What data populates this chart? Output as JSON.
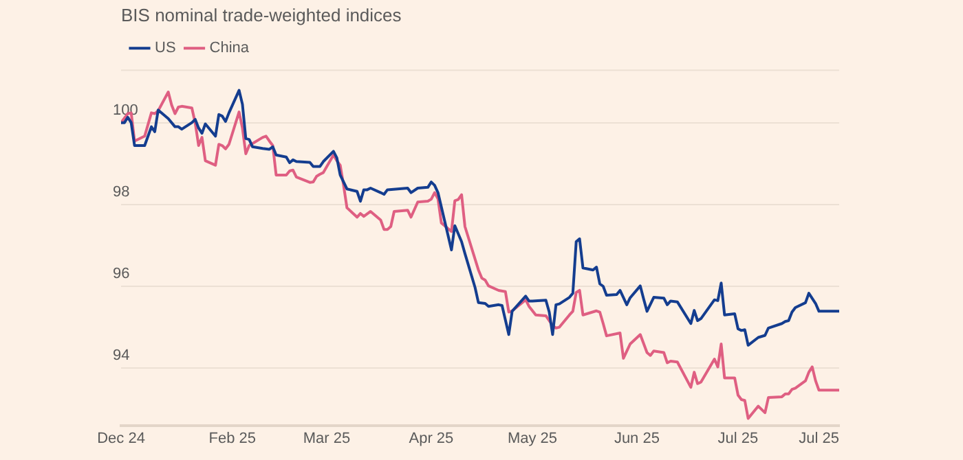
{
  "chart_data": {
    "type": "line",
    "title": "BIS nominal trade-weighted indices",
    "legend": "top left",
    "grid": "y",
    "marker": "none",
    "line_style": "solid",
    "xlim": [
      "2024-12-30",
      "2025-07-31"
    ],
    "xticks": [
      {
        "value": "2024-12-30",
        "label": "Dec 24"
      },
      {
        "value": "2025-02-01",
        "label": "Feb 25"
      },
      {
        "value": "2025-03-01",
        "label": "Mar 25"
      },
      {
        "value": "2025-04-01",
        "label": "Apr 25"
      },
      {
        "value": "2025-05-01",
        "label": "May 25"
      },
      {
        "value": "2025-06-01",
        "label": "Jun 25"
      },
      {
        "value": "2025-07-01",
        "label": "Jul 25"
      },
      {
        "value": "2025-07-25",
        "label": "Jul 25"
      }
    ],
    "ylim": [
      92.6,
      101.3
    ],
    "yticks": [
      94,
      96,
      98,
      100
    ],
    "series": [
      {
        "name": "US",
        "color": "#143d8f",
        "x": [
          "2024-12-30",
          "2024-12-31",
          "2025-01-01",
          "2025-01-02",
          "2025-01-03",
          "2025-01-06",
          "2025-01-08",
          "2025-01-09",
          "2025-01-10",
          "2025-01-13",
          "2025-01-15",
          "2025-01-16",
          "2025-01-17",
          "2025-01-20",
          "2025-01-21",
          "2025-01-22",
          "2025-01-23",
          "2025-01-24",
          "2025-01-27",
          "2025-01-28",
          "2025-01-29",
          "2025-01-30",
          "2025-01-31",
          "2025-02-03",
          "2025-02-04",
          "2025-02-05",
          "2025-02-06",
          "2025-02-07",
          "2025-02-10",
          "2025-02-12",
          "2025-02-13",
          "2025-02-14",
          "2025-02-17",
          "2025-02-18",
          "2025-02-19",
          "2025-02-20",
          "2025-02-24",
          "2025-02-25",
          "2025-02-27",
          "2025-02-28",
          "2025-03-03",
          "2025-03-04",
          "2025-03-05",
          "2025-03-07",
          "2025-03-10",
          "2025-03-11",
          "2025-03-12",
          "2025-03-13",
          "2025-03-14",
          "2025-03-17",
          "2025-03-18",
          "2025-03-19",
          "2025-03-25",
          "2025-03-26",
          "2025-03-28",
          "2025-03-31",
          "2025-04-01",
          "2025-04-02",
          "2025-04-03",
          "2025-04-07",
          "2025-04-08",
          "2025-04-10",
          "2025-04-11",
          "2025-04-14",
          "2025-04-15",
          "2025-04-17",
          "2025-04-18",
          "2025-04-21",
          "2025-04-22",
          "2025-04-24",
          "2025-04-25",
          "2025-04-29",
          "2025-04-30",
          "2025-05-01",
          "2025-05-05",
          "2025-05-06",
          "2025-05-07",
          "2025-05-08",
          "2025-05-09",
          "2025-05-12",
          "2025-05-13",
          "2025-05-14",
          "2025-05-15",
          "2025-05-16",
          "2025-05-19",
          "2025-05-20",
          "2025-05-21",
          "2025-05-22",
          "2025-05-23",
          "2025-05-26",
          "2025-05-27",
          "2025-05-29",
          "2025-05-30",
          "2025-06-02",
          "2025-06-03",
          "2025-06-04",
          "2025-06-06",
          "2025-06-09",
          "2025-06-10",
          "2025-06-11",
          "2025-06-13",
          "2025-06-17",
          "2025-06-18",
          "2025-06-19",
          "2025-06-20",
          "2025-06-24",
          "2025-06-25",
          "2025-06-26",
          "2025-06-27",
          "2025-06-30",
          "2025-07-01",
          "2025-07-02",
          "2025-07-03",
          "2025-07-04",
          "2025-07-07",
          "2025-07-09",
          "2025-07-10",
          "2025-07-14",
          "2025-07-15",
          "2025-07-16",
          "2025-07-17",
          "2025-07-18",
          "2025-07-21",
          "2025-07-22",
          "2025-07-24",
          "2025-07-25",
          "2025-07-31"
        ],
        "values": [
          100,
          100,
          100.13,
          100,
          99.44,
          99.44,
          99.9,
          99.78,
          100.31,
          100.1,
          99.9,
          99.9,
          99.84,
          100,
          100.08,
          99.87,
          99.74,
          99.97,
          99.67,
          100.2,
          100.16,
          100.03,
          100.24,
          100.79,
          100.45,
          99.61,
          99.59,
          99.41,
          99.37,
          99.35,
          99.41,
          99.21,
          99.16,
          99.02,
          99.09,
          99.05,
          99.03,
          98.93,
          98.93,
          99.05,
          99.3,
          99.14,
          98.72,
          98.38,
          98.32,
          98.08,
          98.36,
          98.36,
          98.4,
          98.29,
          98.25,
          98.36,
          98.4,
          98.29,
          98.4,
          98.42,
          98.55,
          98.47,
          98.29,
          96.89,
          97.48,
          97.09,
          96.8,
          95.97,
          95.6,
          95.58,
          95.51,
          95.55,
          95.53,
          94.82,
          95.39,
          95.76,
          95.64,
          95.64,
          95.66,
          95.37,
          94.82,
          95.55,
          95.57,
          95.73,
          95.83,
          97.09,
          97.16,
          96.45,
          96.4,
          96.47,
          96.06,
          96,
          95.78,
          95.8,
          95.9,
          95.55,
          95.72,
          96.01,
          95.69,
          95.39,
          95.73,
          95.71,
          95.55,
          95.64,
          95.62,
          95.09,
          95.41,
          95.16,
          95.21,
          95.67,
          95.65,
          96.08,
          95.3,
          95.33,
          94.96,
          94.92,
          94.94,
          94.56,
          94.75,
          94.8,
          94.98,
          95.09,
          95.14,
          95.16,
          95.37,
          95.48,
          95.6,
          95.83,
          95.58,
          95.39,
          95.39
        ]
      },
      {
        "name": "China",
        "color": "#df5f82",
        "x": [
          "2024-12-30",
          "2025-01-01",
          "2025-01-02",
          "2025-01-03",
          "2025-01-06",
          "2025-01-08",
          "2025-01-09",
          "2025-01-10",
          "2025-01-13",
          "2025-01-14",
          "2025-01-15",
          "2025-01-16",
          "2025-01-17",
          "2025-01-20",
          "2025-01-21",
          "2025-01-22",
          "2025-01-23",
          "2025-01-24",
          "2025-01-27",
          "2025-01-28",
          "2025-01-29",
          "2025-01-30",
          "2025-01-31",
          "2025-02-03",
          "2025-02-04",
          "2025-02-05",
          "2025-02-06",
          "2025-02-10",
          "2025-02-11",
          "2025-02-12",
          "2025-02-13",
          "2025-02-14",
          "2025-02-17",
          "2025-02-18",
          "2025-02-19",
          "2025-02-20",
          "2025-02-24",
          "2025-02-25",
          "2025-02-26",
          "2025-02-27",
          "2025-02-28",
          "2025-03-03",
          "2025-03-04",
          "2025-03-05",
          "2025-03-06",
          "2025-03-07",
          "2025-03-10",
          "2025-03-11",
          "2025-03-12",
          "2025-03-14",
          "2025-03-17",
          "2025-03-18",
          "2025-03-19",
          "2025-03-20",
          "2025-03-21",
          "2025-03-25",
          "2025-03-26",
          "2025-03-28",
          "2025-03-31",
          "2025-04-01",
          "2025-04-02",
          "2025-04-03",
          "2025-04-04",
          "2025-04-07",
          "2025-04-08",
          "2025-04-09",
          "2025-04-10",
          "2025-04-11",
          "2025-04-15",
          "2025-04-16",
          "2025-04-17",
          "2025-04-18",
          "2025-04-21",
          "2025-04-23",
          "2025-04-24",
          "2025-04-25",
          "2025-04-29",
          "2025-04-30",
          "2025-05-02",
          "2025-05-05",
          "2025-05-07",
          "2025-05-08",
          "2025-05-09",
          "2025-05-12",
          "2025-05-13",
          "2025-05-14",
          "2025-05-15",
          "2025-05-16",
          "2025-05-20",
          "2025-05-21",
          "2025-05-22",
          "2025-05-23",
          "2025-05-27",
          "2025-05-28",
          "2025-05-30",
          "2025-06-02",
          "2025-06-04",
          "2025-06-05",
          "2025-06-06",
          "2025-06-09",
          "2025-06-10",
          "2025-06-11",
          "2025-06-13",
          "2025-06-17",
          "2025-06-18",
          "2025-06-19",
          "2025-06-20",
          "2025-06-24",
          "2025-06-25",
          "2025-06-26",
          "2025-06-27",
          "2025-06-30",
          "2025-07-01",
          "2025-07-02",
          "2025-07-03",
          "2025-07-04",
          "2025-07-07",
          "2025-07-09",
          "2025-07-10",
          "2025-07-14",
          "2025-07-15",
          "2025-07-16",
          "2025-07-17",
          "2025-07-18",
          "2025-07-21",
          "2025-07-22",
          "2025-07-23",
          "2025-07-24",
          "2025-07-25",
          "2025-07-31"
        ],
        "values": [
          100,
          100.22,
          100.24,
          99.55,
          99.67,
          100.24,
          100.22,
          100.29,
          100.75,
          100.43,
          100.22,
          100.38,
          100.4,
          100.36,
          99.99,
          99.44,
          99.64,
          99.07,
          98.96,
          99.47,
          99.44,
          99.36,
          99.47,
          100.26,
          99.87,
          99.24,
          99.44,
          99.64,
          99.67,
          99.55,
          99.44,
          98.72,
          98.72,
          98.82,
          98.84,
          98.67,
          98.54,
          98.55,
          98.69,
          98.74,
          98.78,
          99.21,
          99.07,
          98.96,
          98.47,
          97.92,
          97.69,
          97.78,
          97.71,
          97.83,
          97.62,
          97.39,
          97.39,
          97.46,
          97.83,
          97.86,
          97.69,
          98.06,
          98.08,
          98.13,
          98.29,
          98.14,
          97.55,
          97.34,
          98.09,
          98.12,
          98.24,
          97.46,
          96.4,
          96.2,
          96.15,
          96.01,
          95.9,
          95.87,
          95.37,
          95.4,
          95.67,
          95.51,
          95.3,
          95.28,
          95.04,
          94.98,
          95,
          95.3,
          95.39,
          95.85,
          95.9,
          95.3,
          95.4,
          95.37,
          95.09,
          94.79,
          94.86,
          94.24,
          94.59,
          94.82,
          94.38,
          94.31,
          94.42,
          94.38,
          94.13,
          94.17,
          94.15,
          93.53,
          93.9,
          93.62,
          93.66,
          94.22,
          94.03,
          94.59,
          93.76,
          93.76,
          93.34,
          93.23,
          93.21,
          92.77,
          93.07,
          92.91,
          93.28,
          93.3,
          93.37,
          93.37,
          93.48,
          93.51,
          93.69,
          93.9,
          94.03,
          93.69,
          93.46,
          93.46
        ]
      }
    ]
  }
}
